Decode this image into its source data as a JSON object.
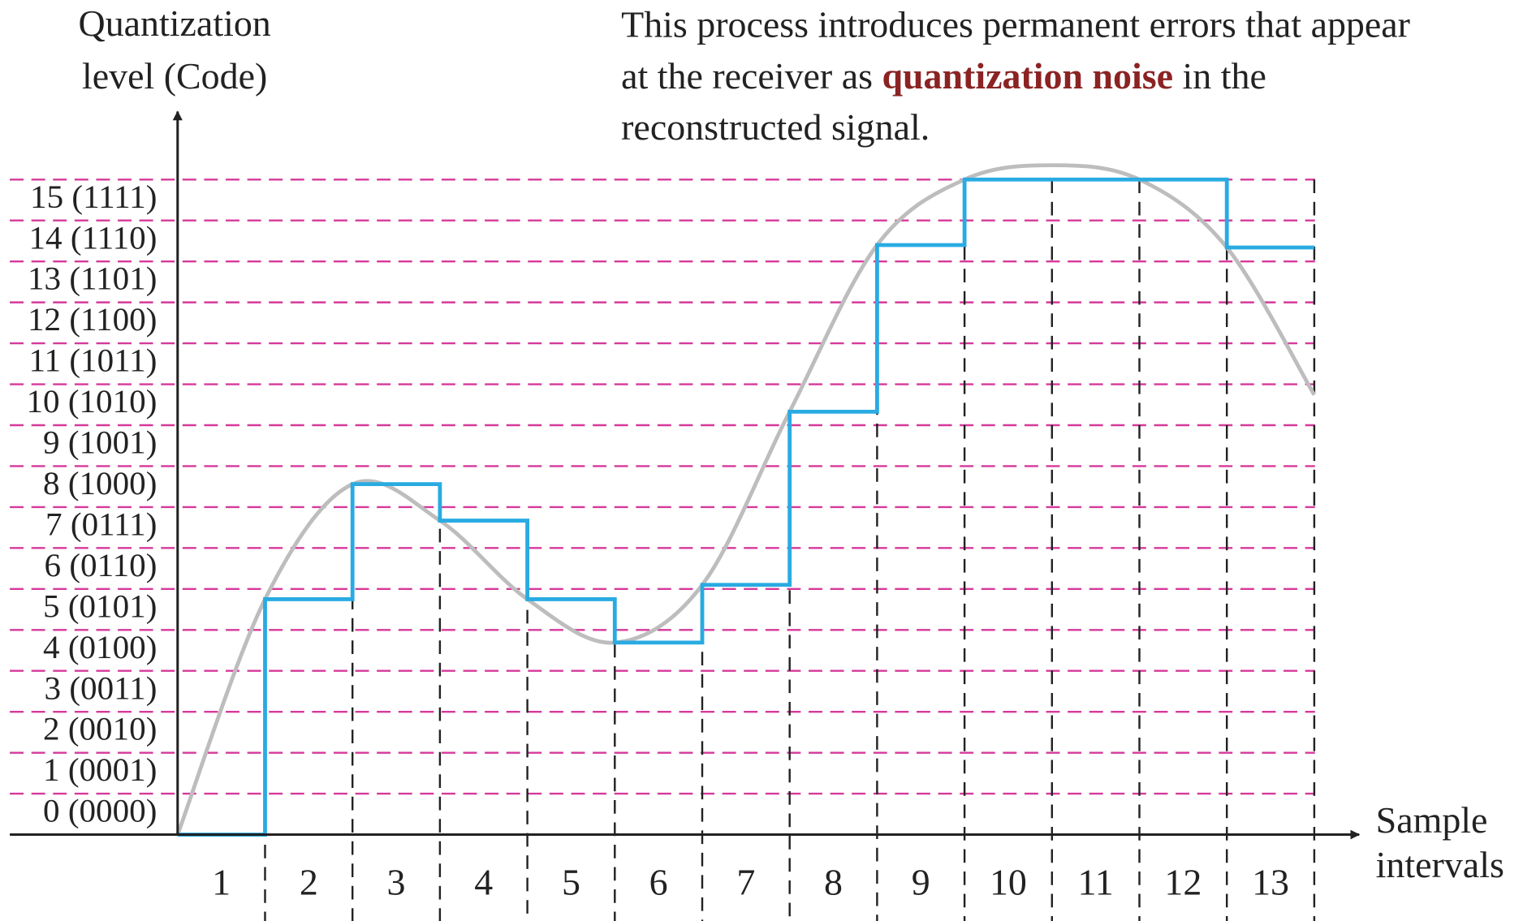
{
  "chart_data": {
    "type": "step",
    "y_label": [
      "Quantization",
      "level (Code)"
    ],
    "x_label": [
      "Sample",
      "intervals"
    ],
    "annotation_lines": [
      [
        "This process introduces permanent errors that appear"
      ],
      [
        "at the receiver as ",
        "quantization noise",
        " in the"
      ],
      [
        "reconstructed signal."
      ]
    ],
    "annotation_highlight_color": "#8b2323",
    "categories": [
      "1",
      "2",
      "3",
      "4",
      "5",
      "6",
      "7",
      "8",
      "9",
      "10",
      "11",
      "12",
      "13"
    ],
    "series": [
      {
        "color": "#29abe2",
        "values": [
          -0.5,
          5.25,
          8.06,
          7.17,
          5.25,
          4.19,
          5.6,
          9.83,
          13.9,
          15.5,
          15.5,
          15.5,
          13.84
        ]
      }
    ],
    "signal": {
      "color": "#bdbdbd",
      "values": [
        -0.5,
        5.25,
        8.06,
        7.17,
        5.25,
        4.19,
        5.6,
        9.83,
        13.9,
        15.5,
        15.85,
        15.5,
        13.84,
        10.24
      ]
    },
    "ylim": [
      -0.5,
      15.5
    ],
    "yticks": [
      {
        "value": 0,
        "label": "0 (0000)"
      },
      {
        "value": 1,
        "label": "1 (0001)"
      },
      {
        "value": 2,
        "label": "2 (0010)"
      },
      {
        "value": 3,
        "label": "3 (0011)"
      },
      {
        "value": 4,
        "label": "4 (0100)"
      },
      {
        "value": 5,
        "label": "5 (0101)"
      },
      {
        "value": 6,
        "label": "6 (0110)"
      },
      {
        "value": 7,
        "label": "7 (0111)"
      },
      {
        "value": 8,
        "label": "8 (1000)"
      },
      {
        "value": 9,
        "label": "9 (1001)"
      },
      {
        "value": 10,
        "label": "10 (1010)"
      },
      {
        "value": 11,
        "label": "11 (1011)"
      },
      {
        "value": 12,
        "label": "12 (1100)"
      },
      {
        "value": 13,
        "label": "13 (1101)"
      },
      {
        "value": 14,
        "label": "14 (1110)"
      },
      {
        "value": 15,
        "label": "15 (1111)"
      }
    ],
    "grid_color": "#d6399a"
  }
}
